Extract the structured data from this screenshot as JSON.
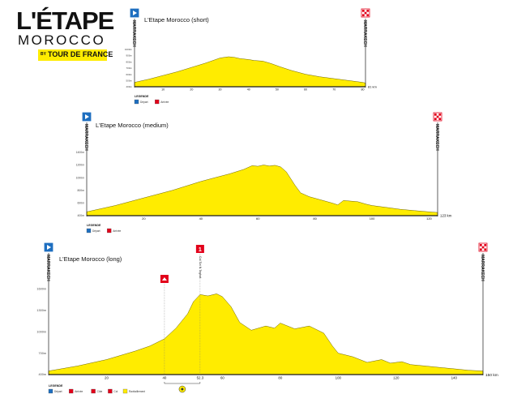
{
  "logo": {
    "title": "L'ÉTAPE",
    "subtitle": "MOROCCO",
    "by": "BY",
    "brand": "TOUR DE FRANCE"
  },
  "icon_names": {
    "start": "start-flag-icon",
    "finish": "finish-flag-icon",
    "climb": "climb-marker-icon",
    "col": "col-marker-icon",
    "food": "feed-zone-icon"
  },
  "colors": {
    "profile_fill": "#ffec00",
    "axis": "#1a1a1a",
    "start_flag": "#1e6fc0",
    "finish_flag": "#e2001a",
    "climb_marker": "#e2001a",
    "brand_yellow": "#ffec00"
  },
  "chart_data": [
    {
      "type": "area",
      "title": "L'Etape Morocco (short)",
      "start_label": "MARRAKECH",
      "finish_label": "MARRAKECH",
      "xlabel": "",
      "ylabel": "",
      "total_km": 81,
      "x_unit": "km",
      "x_ticks": [
        "10",
        "20",
        "30",
        "40",
        "50",
        "60",
        "70",
        "80"
      ],
      "y_ticks": [
        "400m",
        "500m",
        "600m",
        "700m",
        "800m",
        "900m",
        "1000m"
      ],
      "ylim": [
        400,
        1100
      ],
      "x": [
        0,
        5,
        10,
        15,
        20,
        25,
        30,
        33,
        35,
        37,
        40,
        42,
        45,
        48,
        51,
        55,
        60,
        65,
        70,
        75,
        80,
        81
      ],
      "elevation": [
        470,
        520,
        580,
        640,
        710,
        780,
        860,
        880,
        870,
        850,
        835,
        820,
        810,
        770,
        720,
        660,
        600,
        560,
        530,
        500,
        470,
        460
      ],
      "legend": {
        "title": "LEGENDE",
        "items": [
          "Départ",
          "Arrivée"
        ]
      }
    },
    {
      "type": "area",
      "title": "L'Etape Morocco (medium)",
      "start_label": "MARRAKECH",
      "finish_label": "MARRAKECH",
      "xlabel": "",
      "ylabel": "",
      "total_km": 123,
      "x_unit": "km",
      "x_ticks": [
        "20",
        "40",
        "60",
        "80",
        "100",
        "120"
      ],
      "y_ticks": [
        "400m",
        "600m",
        "800m",
        "1000m",
        "1200m",
        "1400m"
      ],
      "ylim": [
        400,
        1450
      ],
      "x": [
        0,
        10,
        20,
        30,
        40,
        45,
        50,
        55,
        58,
        60,
        62,
        64,
        66,
        68,
        70,
        73,
        75,
        78,
        82,
        86,
        88,
        90,
        95,
        98,
        100,
        105,
        110,
        115,
        120,
        123
      ],
      "elevation": [
        460,
        560,
        680,
        800,
        940,
        1000,
        1060,
        1130,
        1190,
        1180,
        1200,
        1185,
        1195,
        1170,
        1090,
        880,
        760,
        700,
        650,
        600,
        570,
        640,
        620,
        580,
        560,
        530,
        500,
        480,
        460,
        450
      ],
      "legend": {
        "title": "LEGENDE",
        "items": [
          "Départ",
          "Arrivée"
        ]
      }
    },
    {
      "type": "area",
      "title": "L'Etape Morocco (long)",
      "start_label": "MARRAKECH",
      "finish_label": "MARRAKECH",
      "xlabel": "",
      "ylabel": "",
      "total_km": 150,
      "x_unit": "km",
      "x_ticks": [
        "20",
        "40",
        "52.3",
        "60",
        "80",
        "100",
        "120",
        "140"
      ],
      "y_ticks": [
        "400m",
        "700m",
        "1000m",
        "1300m",
        "1600m"
      ],
      "ylim": [
        400,
        1750
      ],
      "x": [
        0,
        10,
        20,
        30,
        35,
        40,
        44,
        48,
        50,
        52.3,
        55,
        58,
        60,
        63,
        66,
        70,
        75,
        78,
        80,
        85,
        90,
        95,
        98,
        100,
        105,
        110,
        115,
        118,
        122,
        125,
        130,
        135,
        140,
        145,
        150
      ],
      "elevation": [
        450,
        520,
        610,
        730,
        800,
        900,
        1050,
        1250,
        1420,
        1520,
        1500,
        1530,
        1490,
        1350,
        1130,
        1020,
        1080,
        1050,
        1120,
        1040,
        1080,
        980,
        800,
        700,
        650,
        570,
        610,
        560,
        580,
        540,
        520,
        500,
        480,
        460,
        450
      ],
      "markers": [
        {
          "km": 40,
          "kind": "climb"
        },
        {
          "km": 52.3,
          "kind": "col",
          "label": "1",
          "note": "Col Tizi N Teghat"
        }
      ],
      "legend": {
        "title": "LEGENDE",
        "items": [
          "Départ",
          "Arrivée",
          "Côte",
          "Col",
          "Ravitaillement"
        ]
      }
    }
  ]
}
